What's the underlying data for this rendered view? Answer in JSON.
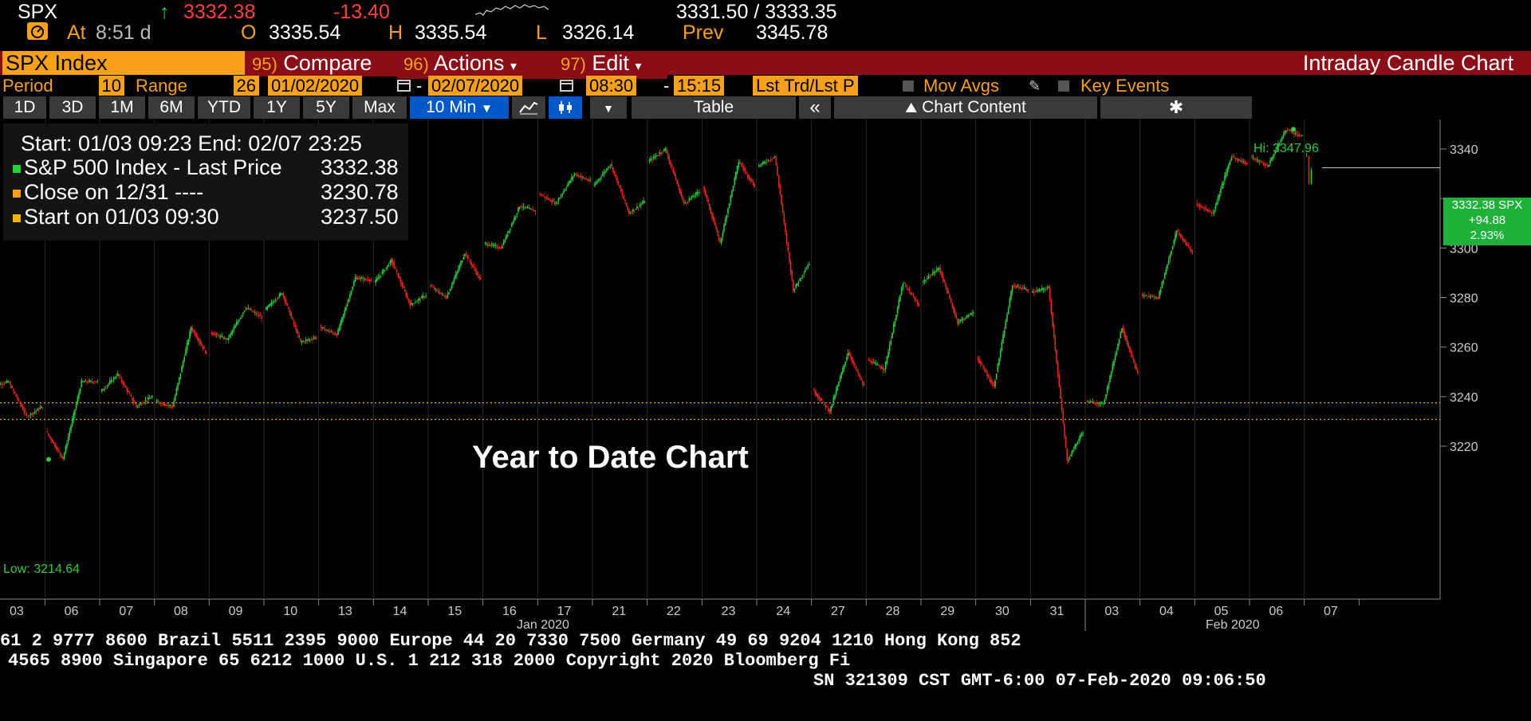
{
  "quote": {
    "ticker": "SPX",
    "arrow": "↑",
    "last": "3332.38",
    "change": "-13.40",
    "bid_ask": "3331.50 / 3333.35",
    "at_label": "At",
    "time": "8:51 d",
    "open_label": "O",
    "open": "3335.54",
    "high_label": "H",
    "high": "3335.54",
    "low_label": "L",
    "low": "3326.14",
    "prev_label": "Prev",
    "prev": "3345.78"
  },
  "function_bar": {
    "security": "SPX Index",
    "compare_num": "95)",
    "compare_label": "Compare",
    "actions_num": "96)",
    "actions_label": "Actions",
    "edit_num": "97)",
    "edit_label": "Edit",
    "title": "Intraday Candle Chart"
  },
  "settings": {
    "period_label": "Period",
    "period_value": "10",
    "range_label": "Range",
    "range_value": "26",
    "start_date": "01/02/2020",
    "end_date": "02/07/2020",
    "start_time": "08:30",
    "end_time": "15:15",
    "price_type": "Lst Trd/Lst P",
    "mov_avgs": "Mov Avgs",
    "key_events": "Key Events"
  },
  "range_buttons": [
    "1D",
    "3D",
    "1M",
    "6M",
    "YTD",
    "1Y",
    "5Y",
    "Max"
  ],
  "interval_button": "10 Min",
  "table_button": "Table",
  "collapse_button": "«",
  "chart_content_label": "Chart Content",
  "legend": {
    "header": "Start: 01/03 09:23 End: 02/07 23:25",
    "rows": [
      {
        "label": "S&P 500 Index - Last Price",
        "value": "3332.38",
        "color": "#2ecc40"
      },
      {
        "label": "Close on 12/31 ----",
        "value": "3230.78",
        "color": "#f7a01b"
      },
      {
        "label": "Start on 01/03 09:30",
        "value": "3237.50",
        "color": "#f0b400"
      }
    ]
  },
  "overlay_title": "Year to Date Chart",
  "hi_label": "Hi: 3347.96",
  "low_label": "Low: 3214.64",
  "price_tag": {
    "price": "3332.38 SPX",
    "change": "+94.88",
    "pct": "2.93%"
  },
  "month_labels": {
    "jan": "Jan 2020",
    "feb": "Feb 2020"
  },
  "footer": {
    "line1": "61 2 9777 8600 Brazil 5511 2395 9000 Europe 44 20 7330 7500 Germany 49 69 9204 1210 Hong Kong 852",
    "line2": "4565 8900          Singapore 65 6212 1000          U.S. 1 212 318 2000          Copyright 2020 Bloomberg Fi",
    "line3": "SN 321309 CST  GMT-6:00 07-Feb-2020 09:06:50"
  },
  "colors": {
    "up": "#2ecc40",
    "down": "#e8281e",
    "accent": "#f7a01b",
    "function_bar": "#8b0d18",
    "selected": "#0058c8"
  },
  "chart_data": {
    "type": "line",
    "series": [
      {
        "name": "S&P 500 Index - Last Price"
      }
    ],
    "x": [
      "01/03",
      "01/06",
      "01/07",
      "01/08",
      "01/09",
      "01/10",
      "01/13",
      "01/14",
      "01/15",
      "01/16",
      "01/17",
      "01/21",
      "01/22",
      "01/23",
      "01/24",
      "01/27",
      "01/28",
      "01/29",
      "01/30",
      "01/31",
      "02/03",
      "02/04",
      "02/05",
      "02/06",
      "02/07"
    ],
    "x_tick_labels": [
      "03",
      "06",
      "07",
      "08",
      "09",
      "10",
      "13",
      "14",
      "15",
      "16",
      "17",
      "21",
      "22",
      "23",
      "24",
      "27",
      "28",
      "29",
      "30",
      "31",
      "03",
      "04",
      "05",
      "06",
      "07"
    ],
    "ohlc": [
      [
        3244,
        3246,
        3232,
        3236
      ],
      [
        3226,
        3246,
        3215,
        3246
      ],
      [
        3242,
        3249,
        3236,
        3240
      ],
      [
        3238,
        3268,
        3236,
        3257
      ],
      [
        3266,
        3276,
        3263,
        3272
      ],
      [
        3275,
        3282,
        3262,
        3264
      ],
      [
        3268,
        3288,
        3265,
        3287
      ],
      [
        3286,
        3295,
        3277,
        3281
      ],
      [
        3285,
        3298,
        3280,
        3287
      ],
      [
        3302,
        3317,
        3300,
        3315
      ],
      [
        3322,
        3330,
        3318,
        3327
      ],
      [
        3325,
        3334,
        3314,
        3319
      ],
      [
        3335,
        3340,
        3318,
        3323
      ],
      [
        3325,
        3335,
        3302,
        3325
      ],
      [
        3333,
        3337,
        3283,
        3294
      ],
      [
        3243,
        3258,
        3234,
        3244
      ],
      [
        3255,
        3286,
        3251,
        3277
      ],
      [
        3286,
        3292,
        3270,
        3274
      ],
      [
        3256,
        3285,
        3244,
        3283
      ],
      [
        3282,
        3284,
        3214,
        3226
      ],
      [
        3238,
        3268,
        3237,
        3249
      ],
      [
        3281,
        3307,
        3280,
        3298
      ],
      [
        3318,
        3337,
        3314,
        3334
      ],
      [
        3337,
        3348,
        3333,
        3345
      ],
      [
        3337,
        3337,
        3326,
        3332
      ]
    ],
    "reference_lines": [
      {
        "name": "Close on 12/31",
        "value": 3230.78
      },
      {
        "name": "Start on 01/03 09:30",
        "value": 3237.5
      }
    ],
    "last_price_line": 3332.38,
    "ylim": [
      3205,
      3355
    ],
    "y_ticks": [
      3220,
      3240,
      3260,
      3280,
      3300,
      3320,
      3340
    ],
    "grid": true,
    "title": "Intraday Candle Chart",
    "xlabel": "",
    "ylabel": ""
  }
}
